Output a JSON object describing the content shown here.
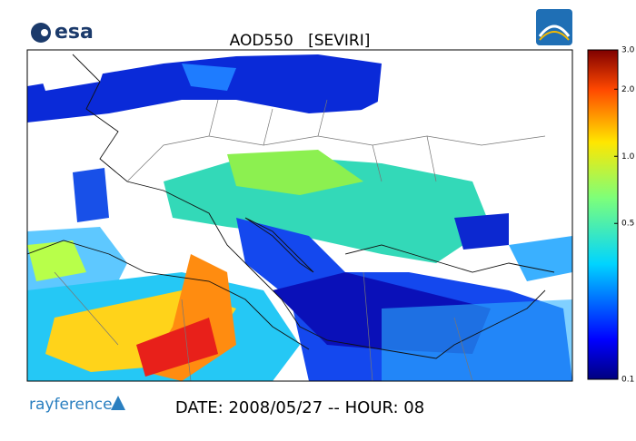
{
  "header": {
    "logo": "esa",
    "title": "AOD550   [SEVIRI]"
  },
  "colorbar": {
    "scale": "log",
    "lim": [
      0.1,
      3.0
    ],
    "ticks": [
      {
        "value": 3.0,
        "label": "3.0"
      },
      {
        "value": 2.0,
        "label": "2.0"
      },
      {
        "value": 1.0,
        "label": "1.0"
      },
      0.5,
      0.1
    ]
  },
  "footer": {
    "logo": "rayference",
    "caption": "DATE: 2008/05/27 -- HOUR: 08"
  }
}
